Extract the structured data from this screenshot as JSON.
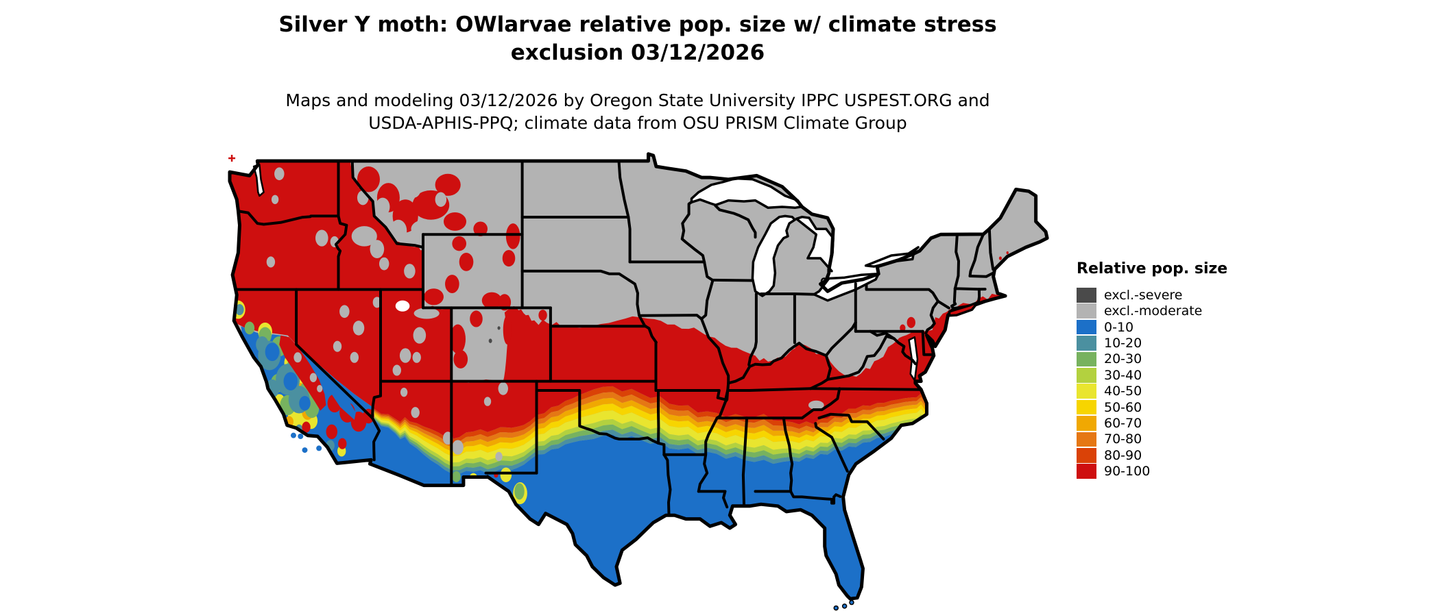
{
  "figure": {
    "title_line1": "Silver Y moth: OWlarvae relative pop. size w/ climate stress",
    "title_line2": "exclusion 03/12/2026",
    "subtitle_line1": "Maps and modeling 03/12/2026 by Oregon State University IPPC USPEST.ORG and",
    "subtitle_line2": "USDA-APHIS-PPQ; climate data from OSU PRISM Climate Group"
  },
  "legend": {
    "title": "Relative pop. size",
    "items": [
      {
        "label": "excl.-severe",
        "color": "#4A4A4A"
      },
      {
        "label": "excl.-moderate",
        "color": "#B3B3B3"
      },
      {
        "label": "0-10",
        "color": "#1C70C8"
      },
      {
        "label": "10-20",
        "color": "#4B90A0"
      },
      {
        "label": "20-30",
        "color": "#77B25F"
      },
      {
        "label": "30-40",
        "color": "#B3D13F"
      },
      {
        "label": "40-50",
        "color": "#E9E52F"
      },
      {
        "label": "50-60",
        "color": "#F7D500"
      },
      {
        "label": "60-70",
        "color": "#F0A802"
      },
      {
        "label": "70-80",
        "color": "#E57714"
      },
      {
        "label": "80-90",
        "color": "#DA4207"
      },
      {
        "label": "90-100",
        "color": "#CE0F0F"
      }
    ]
  },
  "map": {
    "background": "#FFFFFF",
    "water": "#FFFFFF",
    "border_color": "#000000"
  }
}
